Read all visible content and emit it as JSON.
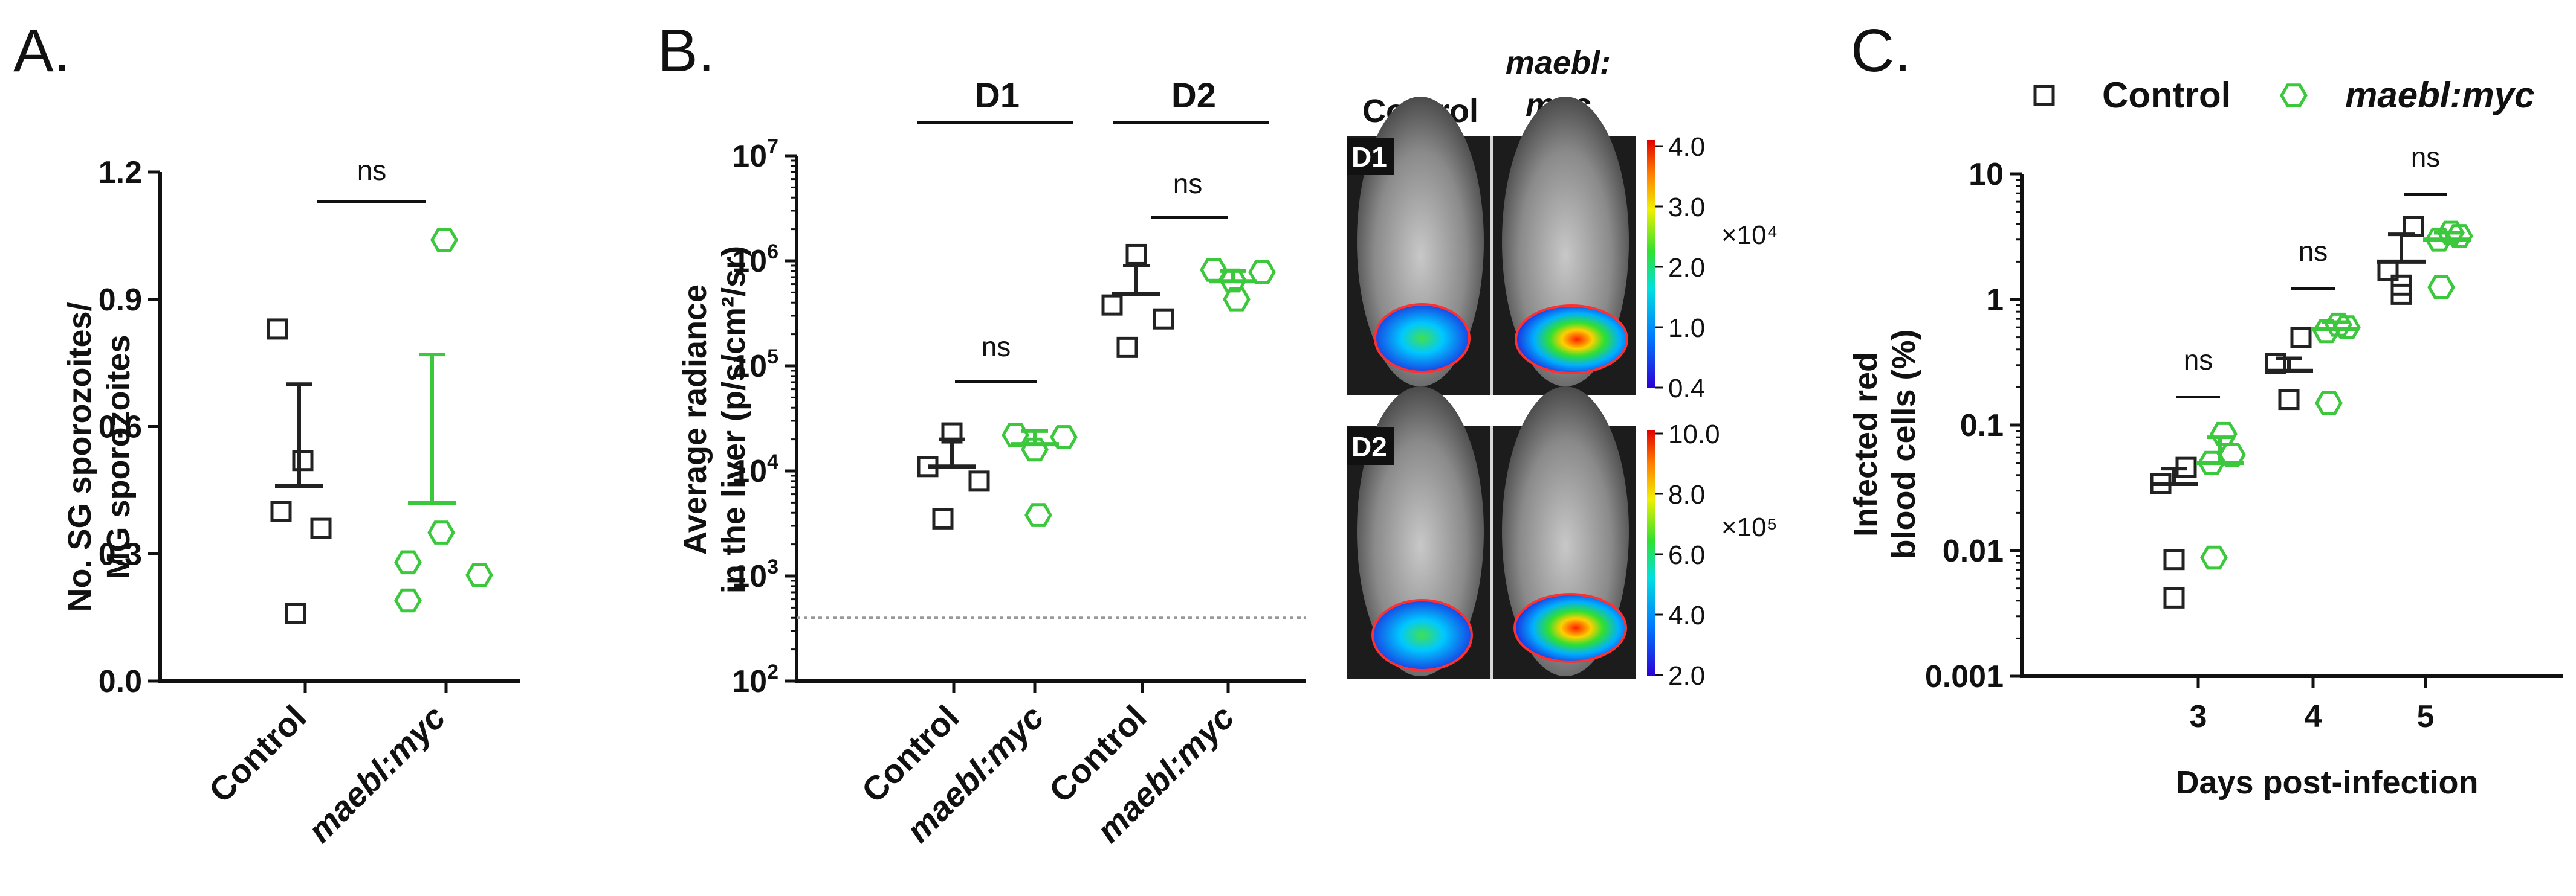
{
  "colors": {
    "control": "#222222",
    "maebl": "#3cc83c",
    "axis": "#111111",
    "ref_line": "#999999"
  },
  "panels": {
    "a": {
      "letter": "A."
    },
    "b": {
      "letter": "B."
    },
    "c": {
      "letter": "C."
    }
  },
  "images": {
    "title_control": "Control",
    "title_maebl_1": "maebl:",
    "title_maebl_2": "myc",
    "tag_d1": "D1",
    "tag_d2": "D2",
    "cbar_d1": {
      "ticks": [
        "4.0",
        "3.0",
        "2.0",
        "1.0",
        "0.4"
      ],
      "multiplier": "×10⁴"
    },
    "cbar_d2": {
      "ticks": [
        "10.0",
        "8.0",
        "6.0",
        "4.0",
        "2.0"
      ],
      "multiplier": "×10⁵"
    }
  },
  "chart_data": [
    {
      "id": "A",
      "type": "scatter",
      "ylabel_line1": "No. SG sporozoites/",
      "ylabel_line2": "MG sporozoites",
      "ylim": [
        0,
        1.2
      ],
      "yticks": [
        0.0,
        0.3,
        0.6,
        0.9,
        1.2
      ],
      "ytick_labels": [
        "0.0",
        "0.3",
        "0.6",
        "0.9",
        "1.2"
      ],
      "categories": [
        "Control",
        "maebl:myc"
      ],
      "series": [
        {
          "name": "Control",
          "marker": "square",
          "values": [
            0.83,
            0.52,
            0.4,
            0.36,
            0.16
          ],
          "mean": 0.46,
          "err": [
            0.46,
            0.7
          ]
        },
        {
          "name": "maebl:myc",
          "marker": "hexagon",
          "values": [
            1.04,
            0.35,
            0.28,
            0.19,
            0.25
          ],
          "mean": 0.42,
          "err": [
            0.42,
            0.77
          ]
        }
      ],
      "annotations": [
        {
          "text": "ns"
        }
      ]
    },
    {
      "id": "B",
      "type": "scatter",
      "scale": "log",
      "ylabel_line1": "Average radiance",
      "ylabel_line2": "in the liver (p/s/cm²/sr)",
      "ylim": [
        100,
        10000000
      ],
      "ytick_base": "10",
      "ytick_exps": [
        "2",
        "3",
        "4",
        "5",
        "6",
        "7"
      ],
      "reference_line": 400,
      "groups": [
        "D1",
        "D2"
      ],
      "categories": [
        "Control",
        "maebl:myc",
        "Control",
        "maebl:myc"
      ],
      "series": [
        {
          "name": "Control D1",
          "marker": "square",
          "values": [
            23000,
            11000,
            8000,
            3500
          ],
          "mean": 11000,
          "err": [
            11000,
            20000
          ]
        },
        {
          "name": "maebl:myc D1",
          "marker": "hexagon",
          "values": [
            22000,
            21000,
            16000,
            3800
          ],
          "mean": 18000,
          "err": [
            18000,
            24000
          ]
        },
        {
          "name": "Control D2",
          "marker": "square",
          "values": [
            1150000,
            380000,
            280000,
            150000
          ],
          "mean": 480000,
          "err": [
            480000,
            900000
          ]
        },
        {
          "name": "maebl:myc D2",
          "marker": "hexagon",
          "values": [
            820000,
            780000,
            650000,
            430000
          ],
          "mean": 640000,
          "err": [
            640000,
            800000
          ]
        }
      ],
      "annotations": [
        {
          "text": "ns"
        },
        {
          "text": "ns"
        }
      ]
    },
    {
      "id": "C",
      "type": "scatter",
      "scale": "log",
      "xlabel": "Days post-infection",
      "ylabel_line1": "Infected red",
      "ylabel_line2": "blood cells (%)",
      "ylim": [
        0.001,
        10
      ],
      "yticks": [
        0.001,
        0.01,
        0.1,
        1,
        10
      ],
      "ytick_labels": [
        "0.001",
        "0.01",
        "0.1",
        "1",
        "10"
      ],
      "categories": [
        "3",
        "4",
        "5"
      ],
      "legend": [
        {
          "label": "Control",
          "marker": "square"
        },
        {
          "label": "maebl:myc",
          "marker": "hexagon"
        }
      ],
      "series": [
        {
          "name": "Control",
          "marker": "square",
          "values": [
            [
              0.046,
              0.034,
              0.0085,
              0.0042
            ],
            [
              0.5,
              0.31,
              0.16,
              0.16
            ],
            [
              3.8,
              1.7,
              1.3,
              1.1
            ]
          ],
          "mean": [
            0.034,
            0.27,
            2.0
          ],
          "err": [
            [
              0.024,
              0.045
            ],
            [
              0.19,
              0.34
            ],
            [
              1.5,
              3.3
            ]
          ]
        },
        {
          "name": "maebl:myc",
          "marker": "hexagon",
          "values": [
            [
              0.085,
              0.058,
              0.05,
              0.0088
            ],
            [
              0.63,
              0.6,
              0.56,
              0.15
            ],
            [
              3.4,
              3.2,
              3.0,
              1.25
            ]
          ],
          "mean": [
            0.05,
            0.58,
            3.0
          ],
          "err": [
            [
              0.042,
              0.08
            ],
            [
              0.48,
              0.66
            ],
            [
              2.6,
              3.4
            ]
          ]
        }
      ],
      "annotations": [
        {
          "text": "ns"
        },
        {
          "text": "ns"
        },
        {
          "text": "ns"
        }
      ]
    }
  ]
}
